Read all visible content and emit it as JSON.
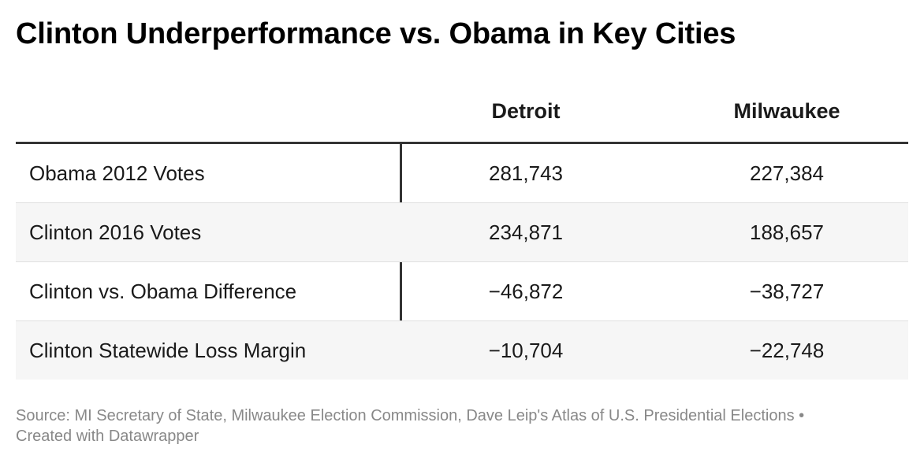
{
  "title": "Clinton Underperformance vs. Obama in Key Cities",
  "chart_data": {
    "type": "table",
    "title": "Clinton Underperformance vs. Obama in Key Cities",
    "columns": [
      "",
      "Detroit",
      "Milwaukee"
    ],
    "rows": [
      {
        "label": "Obama 2012 Votes",
        "values": [
          "281,743",
          "227,384"
        ]
      },
      {
        "label": "Clinton 2016 Votes",
        "values": [
          "234,871",
          "188,657"
        ]
      },
      {
        "label": "Clinton vs. Obama Difference",
        "values": [
          "−46,872",
          "−38,727"
        ]
      },
      {
        "label": "Clinton Statewide Loss Margin",
        "values": [
          "−10,704",
          "−22,748"
        ]
      }
    ]
  },
  "footer": {
    "source": "Source: MI Secretary of State, Milwaukee Election Commission, Dave Leip's Atlas of U.S. Presidential Elections •",
    "credit": "Created with Datawrapper"
  },
  "colors": {
    "text": "#1a1a1a",
    "alt_row": "#f6f6f6",
    "rule": "#333333",
    "footer": "#888888"
  }
}
